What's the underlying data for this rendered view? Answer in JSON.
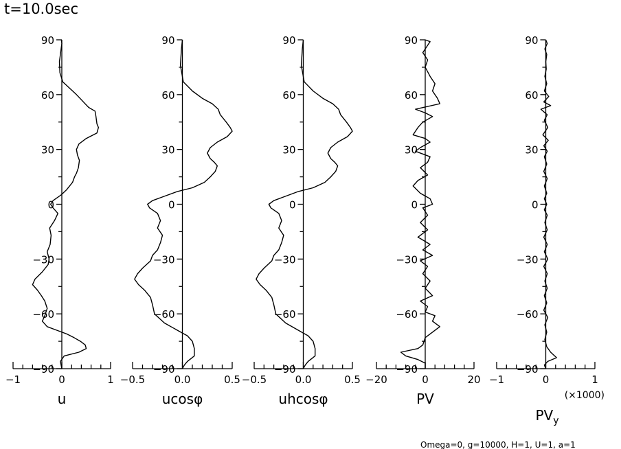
{
  "title": "t=10.0sec",
  "footer": "Omega=0, g=10000, H=1, U=1, a=1",
  "chart_data": [
    {
      "type": "line",
      "xlabel": "u",
      "xlim": [
        -1,
        1
      ],
      "xticks": [
        "−1",
        "0",
        "1"
      ],
      "ylim": [
        -90,
        90
      ],
      "yticks": [
        "90",
        "60",
        "30",
        "0",
        "−30",
        "−60",
        "−90"
      ],
      "curve": [
        [
          -0.01,
          90
        ],
        [
          0,
          88
        ],
        [
          -0.02,
          84
        ],
        [
          -0.05,
          78
        ],
        [
          -0.04,
          72
        ],
        [
          0.02,
          67
        ],
        [
          0.3,
          60
        ],
        [
          0.55,
          53
        ],
        [
          0.68,
          51
        ],
        [
          0.7,
          48
        ],
        [
          0.72,
          44
        ],
        [
          0.75,
          42
        ],
        [
          0.72,
          39
        ],
        [
          0.5,
          36
        ],
        [
          0.35,
          33
        ],
        [
          0.3,
          30
        ],
        [
          0.32,
          27
        ],
        [
          0.36,
          24
        ],
        [
          0.34,
          20
        ],
        [
          0.3,
          17
        ],
        [
          0.26,
          15
        ],
        [
          0.22,
          12
        ],
        [
          0.1,
          8
        ],
        [
          -0.02,
          5
        ],
        [
          -0.18,
          2
        ],
        [
          -0.23,
          0
        ],
        [
          -0.18,
          -2
        ],
        [
          -0.08,
          -5
        ],
        [
          -0.15,
          -9
        ],
        [
          -0.25,
          -13
        ],
        [
          -0.22,
          -17
        ],
        [
          -0.24,
          -22
        ],
        [
          -0.3,
          -26
        ],
        [
          -0.26,
          -30
        ],
        [
          -0.28,
          -33
        ],
        [
          -0.4,
          -37
        ],
        [
          -0.55,
          -41
        ],
        [
          -0.6,
          -44
        ],
        [
          -0.5,
          -47
        ],
        [
          -0.42,
          -50
        ],
        [
          -0.35,
          -53
        ],
        [
          -0.3,
          -57
        ],
        [
          -0.35,
          -61
        ],
        [
          -0.4,
          -64
        ],
        [
          -0.3,
          -67
        ],
        [
          -0.1,
          -69
        ],
        [
          0.1,
          -71
        ],
        [
          0.25,
          -73
        ],
        [
          0.38,
          -75
        ],
        [
          0.48,
          -77
        ],
        [
          0.5,
          -79
        ],
        [
          0.35,
          -81
        ],
        [
          0.05,
          -83
        ],
        [
          -0.03,
          -86
        ],
        [
          0,
          -90
        ]
      ]
    },
    {
      "type": "line",
      "xlabel": "ucosφ",
      "xlim": [
        -0.5,
        0.5
      ],
      "xticks": [
        "−0.5",
        "0.0",
        "0.5"
      ],
      "ylim": [
        -90,
        90
      ],
      "yticks": [
        "90",
        "60",
        "30",
        "0",
        "−30",
        "−60",
        "−90"
      ],
      "curve": [
        [
          0,
          90
        ],
        [
          -0.01,
          85
        ],
        [
          -0.02,
          76
        ],
        [
          0.01,
          67
        ],
        [
          0.1,
          62
        ],
        [
          0.2,
          58
        ],
        [
          0.3,
          55
        ],
        [
          0.36,
          52
        ],
        [
          0.38,
          49
        ],
        [
          0.44,
          45
        ],
        [
          0.48,
          42
        ],
        [
          0.5,
          40
        ],
        [
          0.45,
          37
        ],
        [
          0.35,
          34
        ],
        [
          0.28,
          31
        ],
        [
          0.25,
          28
        ],
        [
          0.28,
          25
        ],
        [
          0.32,
          23
        ],
        [
          0.35,
          21
        ],
        [
          0.33,
          18
        ],
        [
          0.28,
          15
        ],
        [
          0.22,
          12
        ],
        [
          0.1,
          9
        ],
        [
          -0.05,
          7
        ],
        [
          -0.2,
          4
        ],
        [
          -0.3,
          2
        ],
        [
          -0.35,
          0
        ],
        [
          -0.33,
          -2
        ],
        [
          -0.25,
          -5
        ],
        [
          -0.22,
          -9
        ],
        [
          -0.25,
          -13
        ],
        [
          -0.2,
          -17
        ],
        [
          -0.22,
          -21
        ],
        [
          -0.25,
          -25
        ],
        [
          -0.3,
          -28
        ],
        [
          -0.32,
          -31
        ],
        [
          -0.4,
          -35
        ],
        [
          -0.45,
          -38
        ],
        [
          -0.48,
          -41
        ],
        [
          -0.44,
          -44
        ],
        [
          -0.38,
          -47
        ],
        [
          -0.32,
          -51
        ],
        [
          -0.3,
          -55
        ],
        [
          -0.28,
          -60
        ],
        [
          -0.18,
          -65
        ],
        [
          -0.05,
          -69
        ],
        [
          0.05,
          -72
        ],
        [
          0.1,
          -75
        ],
        [
          0.12,
          -79
        ],
        [
          0.12,
          -83
        ],
        [
          0.05,
          -86
        ],
        [
          0.02,
          -88
        ],
        [
          0,
          -90
        ]
      ]
    },
    {
      "type": "line",
      "xlabel": "uhcosφ",
      "xlim": [
        -0.5,
        0.5
      ],
      "xticks": [
        "−0.5",
        "0.0",
        "0.5"
      ],
      "ylim": [
        -90,
        90
      ],
      "yticks": [
        "90",
        "60",
        "30",
        "0",
        "−30",
        "−60",
        "−90"
      ],
      "curve": [
        [
          0,
          90
        ],
        [
          -0.01,
          85
        ],
        [
          -0.02,
          76
        ],
        [
          0.01,
          67
        ],
        [
          0.1,
          62
        ],
        [
          0.2,
          58
        ],
        [
          0.3,
          55
        ],
        [
          0.36,
          52
        ],
        [
          0.38,
          49
        ],
        [
          0.44,
          45
        ],
        [
          0.48,
          42
        ],
        [
          0.5,
          40
        ],
        [
          0.45,
          37
        ],
        [
          0.35,
          34
        ],
        [
          0.28,
          31
        ],
        [
          0.25,
          28
        ],
        [
          0.28,
          25
        ],
        [
          0.32,
          23
        ],
        [
          0.35,
          21
        ],
        [
          0.33,
          18
        ],
        [
          0.28,
          15
        ],
        [
          0.22,
          12
        ],
        [
          0.1,
          9
        ],
        [
          -0.05,
          7
        ],
        [
          -0.2,
          4
        ],
        [
          -0.3,
          2
        ],
        [
          -0.35,
          0
        ],
        [
          -0.33,
          -2
        ],
        [
          -0.25,
          -5
        ],
        [
          -0.22,
          -9
        ],
        [
          -0.25,
          -13
        ],
        [
          -0.2,
          -17
        ],
        [
          -0.22,
          -21
        ],
        [
          -0.25,
          -25
        ],
        [
          -0.3,
          -28
        ],
        [
          -0.32,
          -31
        ],
        [
          -0.4,
          -35
        ],
        [
          -0.45,
          -38
        ],
        [
          -0.48,
          -41
        ],
        [
          -0.44,
          -44
        ],
        [
          -0.38,
          -47
        ],
        [
          -0.32,
          -51
        ],
        [
          -0.3,
          -55
        ],
        [
          -0.28,
          -60
        ],
        [
          -0.18,
          -65
        ],
        [
          -0.05,
          -69
        ],
        [
          0.05,
          -72
        ],
        [
          0.1,
          -75
        ],
        [
          0.12,
          -79
        ],
        [
          0.12,
          -83
        ],
        [
          0.05,
          -86
        ],
        [
          0.02,
          -88
        ],
        [
          0,
          -90
        ]
      ]
    },
    {
      "type": "line",
      "xlabel": "PV",
      "xlim": [
        -20,
        20
      ],
      "xticks": [
        "−20",
        "0",
        "20"
      ],
      "ylim": [
        -90,
        90
      ],
      "yticks": [
        "90",
        "60",
        "30",
        "0",
        "−30",
        "−60",
        "−90"
      ],
      "curve": [
        [
          0,
          90
        ],
        [
          2,
          89
        ],
        [
          1,
          87
        ],
        [
          -1,
          83
        ],
        [
          1,
          79
        ],
        [
          0,
          75
        ],
        [
          2,
          70
        ],
        [
          4,
          66
        ],
        [
          3,
          62
        ],
        [
          5,
          58
        ],
        [
          6,
          55
        ],
        [
          -4,
          52
        ],
        [
          0,
          50
        ],
        [
          3,
          48
        ],
        [
          -1,
          45
        ],
        [
          -3,
          42
        ],
        [
          -5,
          38
        ],
        [
          0,
          36
        ],
        [
          2,
          34
        ],
        [
          -2,
          31
        ],
        [
          -4,
          29
        ],
        [
          2,
          26
        ],
        [
          1,
          23
        ],
        [
          -2,
          20
        ],
        [
          1,
          16
        ],
        [
          -3,
          13
        ],
        [
          -5,
          10
        ],
        [
          -2,
          6
        ],
        [
          2,
          3
        ],
        [
          3,
          0
        ],
        [
          -1,
          -2
        ],
        [
          1,
          -6
        ],
        [
          -2,
          -10
        ],
        [
          1,
          -14
        ],
        [
          -3,
          -18
        ],
        [
          2,
          -22
        ],
        [
          -1,
          -25
        ],
        [
          3,
          -28
        ],
        [
          -2,
          -31
        ],
        [
          1,
          -34
        ],
        [
          -1,
          -38
        ],
        [
          2,
          -42
        ],
        [
          0,
          -46
        ],
        [
          3,
          -50
        ],
        [
          -2,
          -53
        ],
        [
          1,
          -56
        ],
        [
          0,
          -59
        ],
        [
          4,
          -61
        ],
        [
          3,
          -64
        ],
        [
          6,
          -67
        ],
        [
          3,
          -70
        ],
        [
          0,
          -73
        ],
        [
          -1,
          -77
        ],
        [
          -3,
          -79
        ],
        [
          -10,
          -81
        ],
        [
          -8,
          -83
        ],
        [
          -3,
          -85
        ],
        [
          0,
          -87
        ],
        [
          0,
          -90
        ]
      ]
    },
    {
      "type": "line",
      "xlabel": "PVy",
      "multiplier_label": "(×1000)",
      "xlim": [
        -1,
        1
      ],
      "xticks": [
        "−1",
        "0",
        "1"
      ],
      "ylim": [
        -90,
        90
      ],
      "yticks": [
        "90",
        "60",
        "30",
        "0",
        "−30",
        "−60",
        "−90"
      ],
      "curve": [
        [
          0,
          90
        ],
        [
          0.03,
          88
        ],
        [
          -0.02,
          85
        ],
        [
          0.02,
          82
        ],
        [
          0,
          78
        ],
        [
          0.01,
          74
        ],
        [
          -0.02,
          70
        ],
        [
          0.02,
          66
        ],
        [
          -0.03,
          62
        ],
        [
          0.06,
          59
        ],
        [
          -0.04,
          56
        ],
        [
          0.1,
          54
        ],
        [
          -0.1,
          52
        ],
        [
          0.03,
          49
        ],
        [
          -0.03,
          46
        ],
        [
          0.04,
          42
        ],
        [
          -0.06,
          38
        ],
        [
          0.05,
          35
        ],
        [
          -0.04,
          32
        ],
        [
          0.03,
          29
        ],
        [
          -0.03,
          26
        ],
        [
          0.02,
          22
        ],
        [
          -0.04,
          18
        ],
        [
          0.03,
          14
        ],
        [
          -0.03,
          10
        ],
        [
          0.02,
          6
        ],
        [
          -0.03,
          3
        ],
        [
          0.02,
          0
        ],
        [
          -0.03,
          -3
        ],
        [
          0.03,
          -6
        ],
        [
          -0.02,
          -10
        ],
        [
          0.03,
          -14
        ],
        [
          -0.04,
          -18
        ],
        [
          0.03,
          -22
        ],
        [
          -0.03,
          -26
        ],
        [
          0.04,
          -30
        ],
        [
          -0.04,
          -34
        ],
        [
          0.03,
          -38
        ],
        [
          -0.02,
          -42
        ],
        [
          0.03,
          -46
        ],
        [
          -0.03,
          -50
        ],
        [
          0.02,
          -54
        ],
        [
          -0.04,
          -58
        ],
        [
          0.04,
          -62
        ],
        [
          -0.02,
          -66
        ],
        [
          0.02,
          -70
        ],
        [
          -0.02,
          -74
        ],
        [
          0.02,
          -78
        ],
        [
          0.1,
          -81
        ],
        [
          0.22,
          -84
        ],
        [
          0.04,
          -86
        ],
        [
          -0.03,
          -88
        ],
        [
          0,
          -90
        ]
      ]
    }
  ]
}
